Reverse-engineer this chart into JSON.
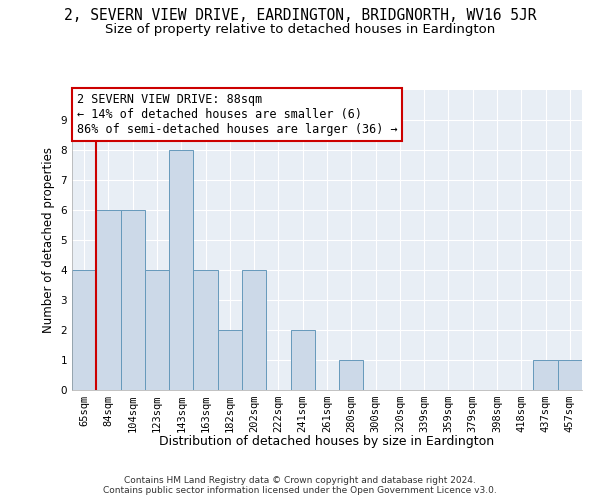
{
  "title": "2, SEVERN VIEW DRIVE, EARDINGTON, BRIDGNORTH, WV16 5JR",
  "subtitle": "Size of property relative to detached houses in Eardington",
  "xlabel": "Distribution of detached houses by size in Eardington",
  "ylabel": "Number of detached properties",
  "categories": [
    "65sqm",
    "84sqm",
    "104sqm",
    "123sqm",
    "143sqm",
    "163sqm",
    "182sqm",
    "202sqm",
    "222sqm",
    "241sqm",
    "261sqm",
    "280sqm",
    "300sqm",
    "320sqm",
    "339sqm",
    "359sqm",
    "379sqm",
    "398sqm",
    "418sqm",
    "437sqm",
    "457sqm"
  ],
  "values": [
    4,
    6,
    6,
    4,
    8,
    4,
    2,
    4,
    0,
    2,
    0,
    1,
    0,
    0,
    0,
    0,
    0,
    0,
    0,
    1,
    1
  ],
  "bar_color": "#ccd9e8",
  "bar_edge_color": "#6699bb",
  "ref_line_x": 0.5,
  "ref_line_color": "#cc0000",
  "annotation_line1": "2 SEVERN VIEW DRIVE: 88sqm",
  "annotation_line2": "← 14% of detached houses are smaller (6)",
  "annotation_line3": "86% of semi-detached houses are larger (36) →",
  "annotation_box_color": "#cc0000",
  "plot_bg_color": "#e8eef5",
  "ylim": [
    0,
    10
  ],
  "yticks": [
    0,
    1,
    2,
    3,
    4,
    5,
    6,
    7,
    8,
    9,
    10
  ],
  "footer_line1": "Contains HM Land Registry data © Crown copyright and database right 2024.",
  "footer_line2": "Contains public sector information licensed under the Open Government Licence v3.0.",
  "title_fontsize": 10.5,
  "subtitle_fontsize": 9.5,
  "xlabel_fontsize": 9,
  "ylabel_fontsize": 8.5,
  "tick_fontsize": 7.5,
  "annotation_fontsize": 8.5,
  "footer_fontsize": 6.5
}
